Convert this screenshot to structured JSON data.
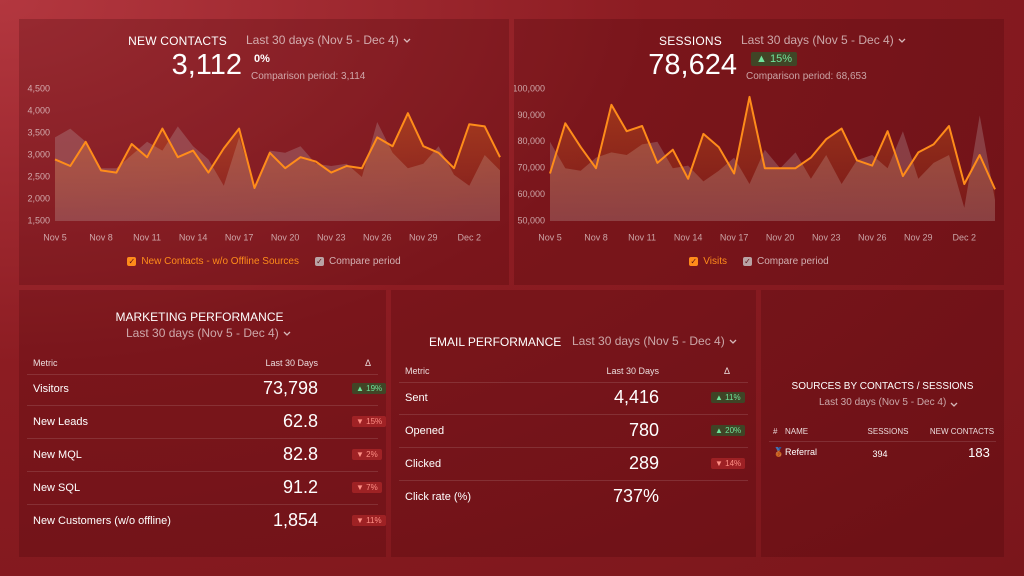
{
  "chart_data": [
    {
      "type": "line",
      "title": "NEW CONTACTS",
      "date_range": "Last 30 days (Nov 5 - Dec 4)",
      "total": "3,112",
      "change": "0%",
      "comparison": "Comparison period: 3,114",
      "categories": [
        "Nov 5",
        null,
        null,
        "Nov 8",
        null,
        null,
        "Nov 11",
        null,
        null,
        "Nov 14",
        null,
        null,
        "Nov 17",
        null,
        null,
        "Nov 20",
        null,
        null,
        "Nov 23",
        null,
        null,
        "Nov 26",
        null,
        null,
        "Nov 29",
        null,
        null,
        "Dec 2",
        null,
        null
      ],
      "series": [
        {
          "name": "New Contacts - w/o Offline Sources",
          "color": "#ff8c1a",
          "values": [
            2900,
            2750,
            3300,
            2650,
            2600,
            3250,
            2950,
            3600,
            2950,
            3100,
            2600,
            3150,
            3600,
            2250,
            3050,
            2700,
            2950,
            2850,
            2600,
            2750,
            2700,
            3400,
            3200,
            3950,
            3200,
            3050,
            2700,
            3700,
            3650,
            2950
          ]
        },
        {
          "name": "Compare period",
          "color": "#b9a3a5",
          "values": [
            3400,
            3600,
            3300,
            2700,
            2700,
            3000,
            3300,
            3100,
            3650,
            3200,
            2900,
            2300,
            3400,
            2300,
            3100,
            3050,
            3200,
            2800,
            2750,
            2800,
            2500,
            3750,
            3050,
            2700,
            2800,
            3200,
            2550,
            2300,
            3000,
            2650
          ]
        }
      ],
      "ylim": [
        1500,
        4500
      ],
      "yticks": [
        {
          "value": 1500,
          "label": "1,500"
        },
        {
          "value": 2000,
          "label": "2,000"
        },
        {
          "value": 2500,
          "label": "2,500"
        },
        {
          "value": 3000,
          "label": "3,000"
        },
        {
          "value": 3500,
          "label": "3,500"
        },
        {
          "value": 4000,
          "label": "4,000"
        },
        {
          "value": 4500,
          "label": "4,500"
        }
      ],
      "grid": false
    },
    {
      "type": "line",
      "title": "SESSIONS",
      "date_range": "Last 30 days (Nov 5 - Dec 4)",
      "total": "78,624",
      "change": "15%",
      "change_direction": "up",
      "comparison": "Comparison period: 68,653",
      "categories": [
        "Nov 5",
        null,
        null,
        "Nov 8",
        null,
        null,
        "Nov 11",
        null,
        null,
        "Nov 14",
        null,
        null,
        "Nov 17",
        null,
        null,
        "Nov 20",
        null,
        null,
        "Nov 23",
        null,
        null,
        "Nov 26",
        null,
        null,
        "Nov 29",
        null,
        null,
        "Dec 2",
        null,
        null
      ],
      "series": [
        {
          "name": "Visits",
          "color": "#ff8c1a",
          "values": [
            68000,
            87000,
            78000,
            70000,
            94000,
            84000,
            86000,
            72000,
            77000,
            66000,
            83000,
            78000,
            68000,
            97000,
            70000,
            70000,
            70000,
            74000,
            81000,
            85000,
            73000,
            71000,
            84000,
            67000,
            76000,
            79000,
            86000,
            64000,
            75000,
            62000
          ]
        },
        {
          "name": "Compare period",
          "color": "#b9a3a5",
          "values": [
            80000,
            70000,
            69000,
            74000,
            76000,
            75000,
            79000,
            80000,
            70000,
            71000,
            65000,
            69000,
            74000,
            64000,
            77000,
            70000,
            76000,
            66000,
            75000,
            64000,
            73000,
            75000,
            70000,
            84000,
            66000,
            72000,
            75000,
            55000,
            90000,
            58000
          ]
        }
      ],
      "ylim": [
        50000,
        100000
      ],
      "yticks": [
        {
          "value": 50000,
          "label": "50,000"
        },
        {
          "value": 60000,
          "label": "60,000"
        },
        {
          "value": 70000,
          "label": "70,000"
        },
        {
          "value": 80000,
          "label": "80,000"
        },
        {
          "value": 90000,
          "label": "90,000"
        },
        {
          "value": 100000,
          "label": "100,000"
        }
      ],
      "grid": false
    }
  ],
  "marketing": {
    "title": "MARKETING PERFORMANCE",
    "date_range": "Last 30 days (Nov 5 - Dec 4)",
    "columns": [
      "Metric",
      "Last 30 Days",
      "Δ"
    ],
    "rows": [
      {
        "metric": "Visitors",
        "value": "73,798",
        "delta": "19%",
        "direction": "up"
      },
      {
        "metric": "New Leads",
        "value": "62.8",
        "delta": "15%",
        "direction": "down"
      },
      {
        "metric": "New MQL",
        "value": "82.8",
        "delta": "2%",
        "direction": "down"
      },
      {
        "metric": "New SQL",
        "value": "91.2",
        "delta": "7%",
        "direction": "down"
      },
      {
        "metric": "New Customers (w/o offline)",
        "value": "1,854",
        "delta": "11%",
        "direction": "down"
      }
    ]
  },
  "email": {
    "title": "EMAIL PERFORMANCE",
    "date_range": "Last 30 days (Nov 5 - Dec 4)",
    "columns": [
      "Metric",
      "Last 30 Days",
      "Δ"
    ],
    "rows": [
      {
        "metric": "Sent",
        "value": "4,416",
        "delta": "11%",
        "direction": "up"
      },
      {
        "metric": "Opened",
        "value": "780",
        "delta": "20%",
        "direction": "up"
      },
      {
        "metric": "Clicked",
        "value": "289",
        "delta": "14%",
        "direction": "down"
      },
      {
        "metric": "Click rate (%)",
        "value": "737%"
      }
    ]
  },
  "sources": {
    "title": "SOURCES BY CONTACTS / SESSIONS",
    "date_range": "Last 30 days (Nov 5 - Dec 4)",
    "columns": [
      "#",
      "NAME",
      "SESSIONS",
      "NEW CONTACTS"
    ],
    "rows": [
      {
        "name": "Referral",
        "sessions": "394",
        "contacts": "183"
      }
    ]
  }
}
